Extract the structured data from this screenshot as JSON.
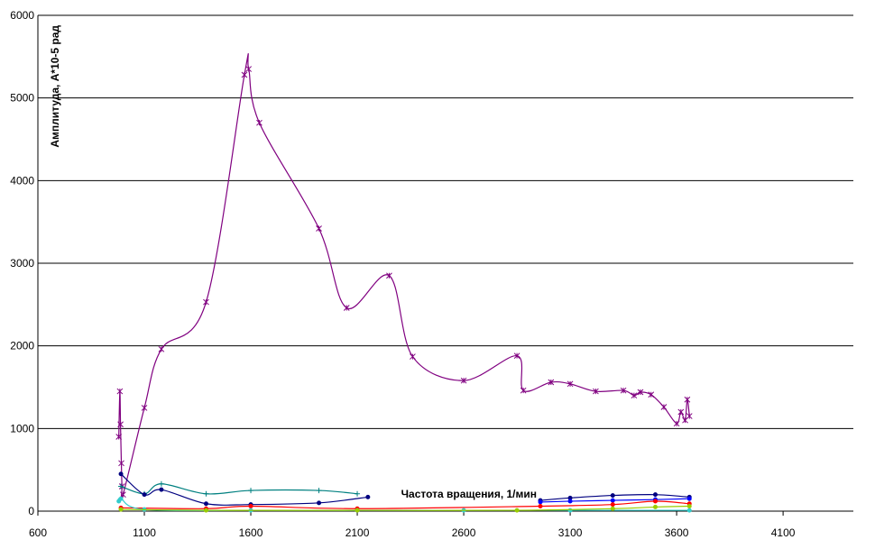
{
  "chart_data": {
    "type": "line",
    "x_label": "Частота вращения, 1/мин",
    "y_label": "Амплитуда, А*10-5 рад",
    "xlim": [
      600,
      4430
    ],
    "ylim": [
      0,
      6000
    ],
    "xticks": [
      600,
      1100,
      1600,
      2100,
      2600,
      3100,
      3600,
      4100
    ],
    "yticks": [
      0,
      1000,
      2000,
      3000,
      4000,
      5000,
      6000
    ],
    "grid": true,
    "series": [
      {
        "color": "#800080",
        "marker": "star",
        "x": [
          980,
          985,
          988,
          992,
          995,
          1000,
          1100,
          1180,
          1390,
          1570,
          1590,
          1640,
          1920,
          2050,
          2250,
          2360,
          2600,
          2850,
          2880,
          3010,
          3100,
          3220,
          3350,
          3400,
          3430,
          3480,
          3540,
          3600,
          3620,
          3640,
          3650,
          3660
        ],
        "values": [
          900,
          1450,
          1050,
          580,
          300,
          200,
          1250,
          1960,
          2530,
          5280,
          5350,
          4700,
          3420,
          2460,
          2850,
          1870,
          1580,
          1880,
          1460,
          1560,
          1540,
          1450,
          1460,
          1400,
          1440,
          1410,
          1260,
          1060,
          1200,
          1100,
          1350,
          1150
        ]
      },
      {
        "color": "#008080",
        "marker": "plus",
        "x": [
          990,
          1100,
          1180,
          1390,
          1600,
          1920,
          2100
        ],
        "values": [
          300,
          210,
          330,
          210,
          250,
          250,
          210
        ]
      },
      {
        "color": "#000080",
        "marker": "dot",
        "x": [
          990,
          1100,
          1180,
          1390,
          1600,
          1920,
          2150,
          null,
          2960,
          3100,
          3300,
          3500,
          3660
        ],
        "values": [
          450,
          200,
          260,
          90,
          80,
          100,
          170,
          null,
          130,
          160,
          190,
          200,
          170
        ]
      },
      {
        "color": "#0000ff",
        "marker": "dot",
        "x": [
          2960,
          3100,
          3300,
          3500,
          3660
        ],
        "values": [
          110,
          120,
          130,
          140,
          150
        ]
      },
      {
        "color": "#ff0000",
        "marker": "dot",
        "x": [
          990,
          1390,
          1600,
          2100,
          2960,
          3300,
          3500,
          3660
        ],
        "values": [
          40,
          30,
          60,
          30,
          60,
          80,
          120,
          90
        ]
      },
      {
        "color": "#33cccc",
        "marker": "dot",
        "x": [
          980,
          990,
          1100,
          1600,
          2100,
          2600,
          3100,
          3660
        ],
        "values": [
          120,
          150,
          20,
          10,
          10,
          10,
          10,
          10
        ]
      },
      {
        "color": "#99cc00",
        "marker": "dot",
        "x": [
          990,
          1390,
          2100,
          2850,
          3300,
          3500,
          3660
        ],
        "values": [
          20,
          10,
          10,
          10,
          30,
          50,
          60
        ]
      }
    ]
  }
}
